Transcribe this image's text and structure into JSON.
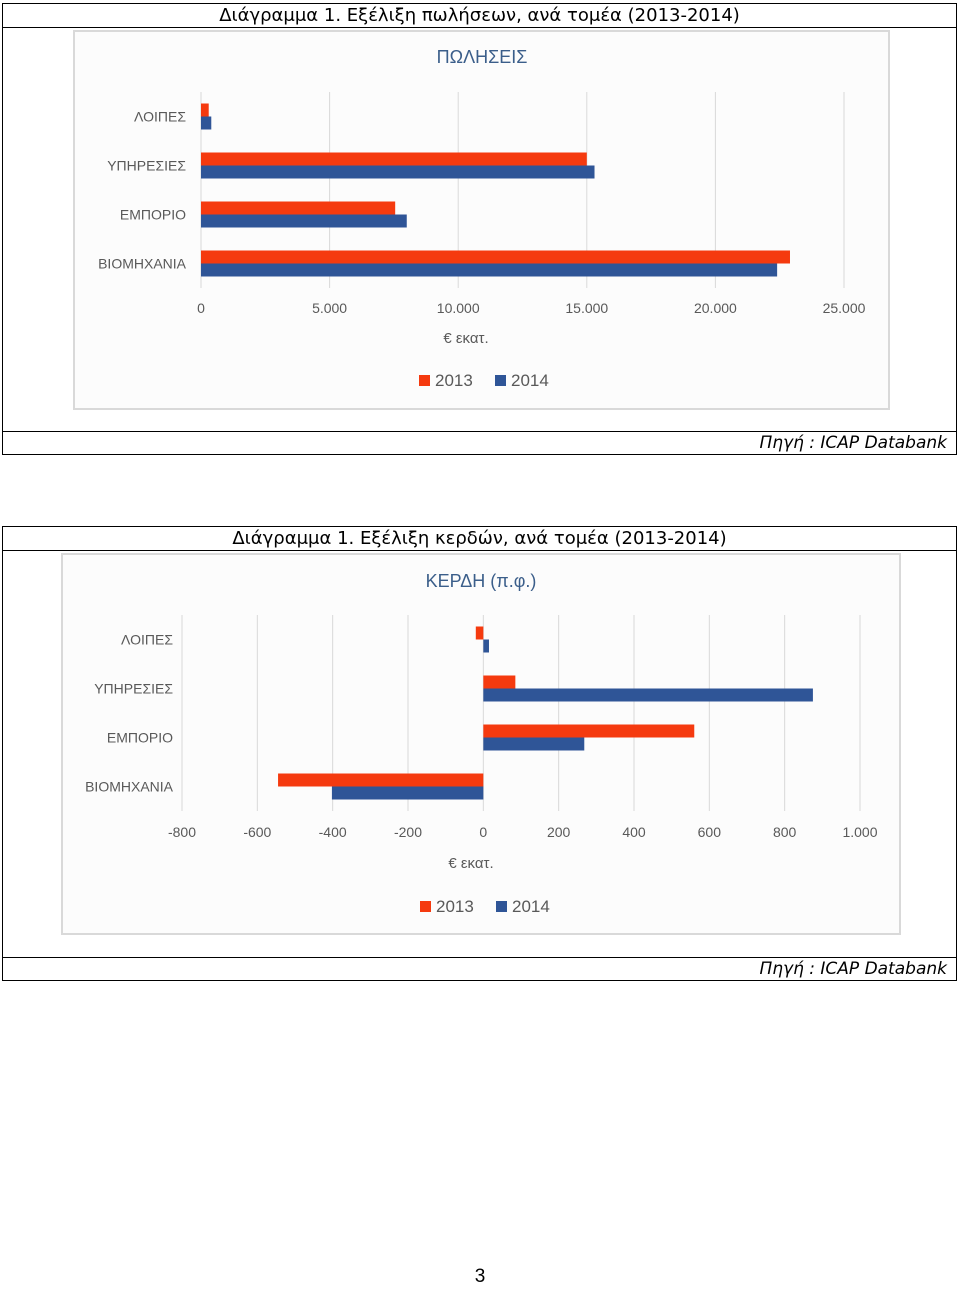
{
  "figures": [
    {
      "caption": "Διάγραμμα 1. Εξέλιξη πωλήσεων, ανά τομέα (2013-2014)",
      "source": "Πηγή : ICAP Databank"
    },
    {
      "caption": "Διάγραμμα 1. Εξέλιξη κερδών, ανά τομέα (2013-2014)",
      "source": "Πηγή : ICAP Databank"
    }
  ],
  "page_number": "3",
  "colors": {
    "series_2013": "#f53a0f",
    "series_2014": "#2f5597",
    "grid": "#d9d9d9"
  },
  "chart_data": [
    {
      "type": "bar",
      "orientation": "horizontal",
      "title": "ΠΩΛΗΣΕΙΣ",
      "xlabel": "€ εκατ.",
      "ylabel": "",
      "categories": [
        "ΛΟΙΠΕΣ",
        "ΥΠΗΡΕΣΙΕΣ",
        "ΕΜΠΟΡΙΟ",
        "ΒΙΟΜΗΧΑΝΙΑ"
      ],
      "series": [
        {
          "name": "2013",
          "values": [
            300,
            15000,
            7550,
            22900
          ]
        },
        {
          "name": "2014",
          "values": [
            400,
            15300,
            8000,
            22400
          ]
        }
      ],
      "xlim": [
        0,
        25000
      ],
      "xticks": [
        0,
        5000,
        10000,
        15000,
        20000,
        25000
      ],
      "xtick_labels": [
        "0",
        "5.000",
        "10.000",
        "15.000",
        "20.000",
        "25.000"
      ],
      "grid": true,
      "legend": "bottom"
    },
    {
      "type": "bar",
      "orientation": "horizontal",
      "title": "ΚΕΡΔΗ (π.φ.)",
      "xlabel": "€ εκατ.",
      "ylabel": "",
      "categories": [
        "ΛΟΙΠΕΣ",
        "ΥΠΗΡΕΣΙΕΣ",
        "ΕΜΠΟΡΙΟ",
        "ΒΙΟΜΗΧΑΝΙΑ"
      ],
      "series": [
        {
          "name": "2013",
          "values": [
            -20,
            85,
            560,
            -545
          ]
        },
        {
          "name": "2014",
          "values": [
            15,
            875,
            268,
            -402
          ]
        }
      ],
      "xlim": [
        -800,
        1000
      ],
      "xticks": [
        -800,
        -600,
        -400,
        -200,
        0,
        200,
        400,
        600,
        800,
        1000
      ],
      "xtick_labels": [
        "-800",
        "-600",
        "-400",
        "-200",
        "0",
        "200",
        "400",
        "600",
        "800",
        "1.000"
      ],
      "grid": true,
      "legend": "bottom"
    }
  ]
}
